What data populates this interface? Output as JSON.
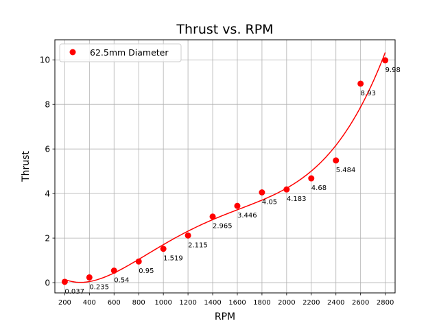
{
  "chart_data": {
    "type": "scatter",
    "title": "Thrust vs. RPM",
    "xlabel": "RPM",
    "ylabel": "Thrust",
    "xlim": [
      120,
      2880
    ],
    "ylim": [
      -0.46,
      10.9
    ],
    "xticks": [
      200,
      400,
      600,
      800,
      1000,
      1200,
      1400,
      1600,
      1800,
      2000,
      2200,
      2400,
      2600,
      2800
    ],
    "yticks": [
      0,
      2,
      4,
      6,
      8,
      10
    ],
    "grid": true,
    "legend": {
      "placement": "top-left",
      "entries": [
        "62.5mm Diameter"
      ]
    },
    "colors": {
      "marker": "#ff0000",
      "fit_line": "#ff0000",
      "grid": "#b0b0b0"
    },
    "series": [
      {
        "name": "62.5mm Diameter",
        "x": [
          200,
          400,
          600,
          800,
          1000,
          1200,
          1400,
          1600,
          1800,
          2000,
          2200,
          2400,
          2600,
          2800
        ],
        "y": [
          0.037,
          0.235,
          0.54,
          0.95,
          1.519,
          2.115,
          2.965,
          3.446,
          4.05,
          4.183,
          4.68,
          5.484,
          8.93,
          9.98
        ],
        "labels": [
          "0.037",
          "0.235",
          "0.54",
          "0.95",
          "1.519",
          "2.115",
          "2.965",
          "3.446",
          "4.05",
          "4.183",
          "4.68",
          "5.484",
          "8.93",
          "9.98"
        ]
      }
    ]
  }
}
